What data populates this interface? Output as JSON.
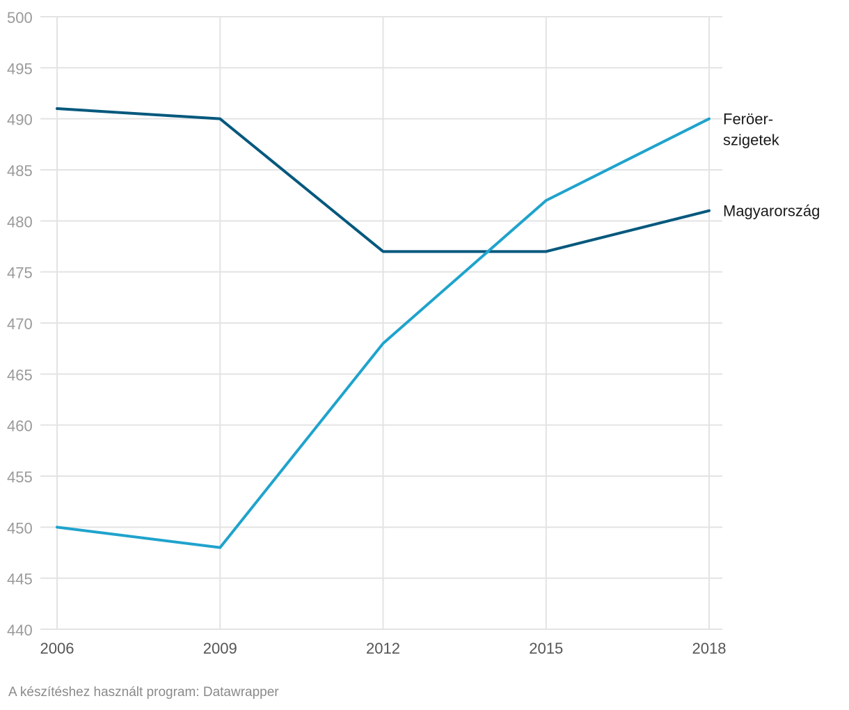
{
  "chart_data": {
    "type": "line",
    "x": [
      2006,
      2009,
      2012,
      2015,
      2018
    ],
    "series": [
      {
        "name": "Magyarország",
        "values": [
          491,
          490,
          477,
          477,
          481
        ],
        "color": "#04587d",
        "label_lines": [
          "Magyarország"
        ]
      },
      {
        "name": "Feröer-szigetek",
        "values": [
          450,
          448,
          468,
          482,
          490
        ],
        "color": "#1fa3cc",
        "label_lines": [
          "Feröer-",
          "szigetek"
        ]
      }
    ],
    "title": "",
    "xlabel": "",
    "ylabel": "",
    "ylim": [
      440,
      500
    ],
    "yticks": [
      440,
      445,
      450,
      455,
      460,
      465,
      470,
      475,
      480,
      485,
      490,
      495,
      500
    ],
    "grid": true,
    "legend": "direct-labels-right"
  },
  "footer": {
    "credit": "A készítéshez használt program: Datawrapper"
  },
  "colors": {
    "grid": "#e3e3e3",
    "axis_text": "#9a9a9a"
  }
}
